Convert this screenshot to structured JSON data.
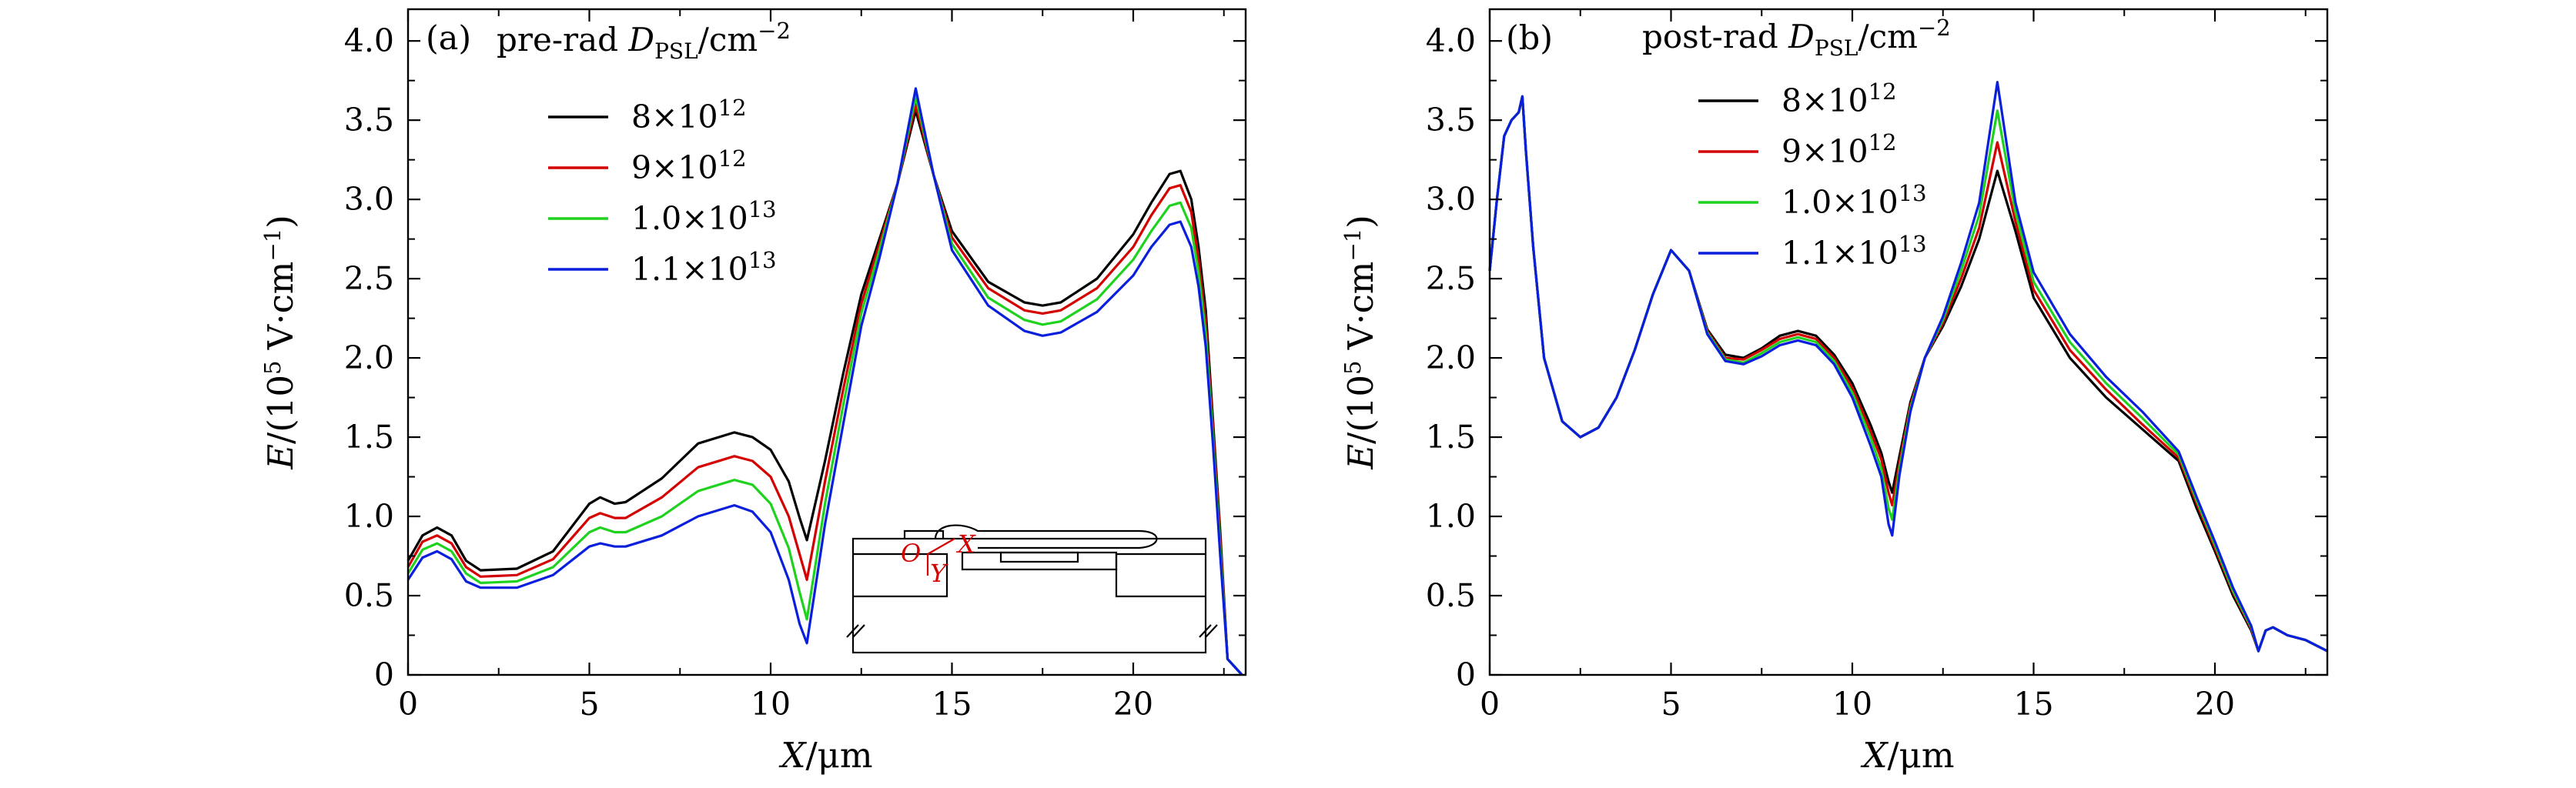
{
  "chart_data": [
    {
      "type": "line",
      "panel_label": "(a)",
      "legend_title_prefix": "pre-rad",
      "legend_title_symbol": "D",
      "legend_title_subscript": "PSL",
      "legend_title_unit": "/cm",
      "legend_title_unit_exp": "−2",
      "xlabel_symbol": "X",
      "xlabel_unit": "/μm",
      "ylabel_symbol": "E",
      "ylabel_prefix": "/(10",
      "ylabel_exp": "5",
      "ylabel_unit": " V·cm",
      "ylabel_unit_exp": "−1",
      "ylabel_close": ")",
      "xlim": [
        0,
        23.1
      ],
      "ylim": [
        0,
        4.2
      ],
      "xticks": [
        0,
        5,
        10,
        15,
        20
      ],
      "xtick_labels": [
        "0",
        "5",
        "10",
        "15",
        "20"
      ],
      "yticks": [
        0,
        0.5,
        1.0,
        1.5,
        2.0,
        2.5,
        3.0,
        3.5,
        4.0
      ],
      "ytick_labels": [
        "0",
        "0.5",
        "1.0",
        "1.5",
        "2.0",
        "2.5",
        "3.0",
        "3.5",
        "4.0"
      ],
      "grid": false,
      "legend_position": "top-left",
      "series": [
        {
          "name": "8×10",
          "name_exp": "12",
          "color": "#000000",
          "x": [
            0,
            0.4,
            0.8,
            1.2,
            1.6,
            2.0,
            3.0,
            4.0,
            5.0,
            5.3,
            5.7,
            6.0,
            7.0,
            8.0,
            9.0,
            9.5,
            10.0,
            10.5,
            10.8,
            11.0,
            11.5,
            12.0,
            12.5,
            13.0,
            13.5,
            14.0,
            14.5,
            15.0,
            16.0,
            17.0,
            17.5,
            18.0,
            19.0,
            20.0,
            20.5,
            21.0,
            21.3,
            21.6,
            21.8,
            22.0,
            22.2,
            22.4,
            22.6,
            23.0
          ],
          "y": [
            0.72,
            0.88,
            0.93,
            0.88,
            0.72,
            0.66,
            0.67,
            0.78,
            1.08,
            1.12,
            1.08,
            1.09,
            1.24,
            1.46,
            1.53,
            1.5,
            1.42,
            1.22,
            0.99,
            0.85,
            1.35,
            1.9,
            2.4,
            2.75,
            3.1,
            3.56,
            3.15,
            2.8,
            2.48,
            2.35,
            2.33,
            2.35,
            2.5,
            2.78,
            2.98,
            3.16,
            3.18,
            3.0,
            2.7,
            2.3,
            1.6,
            0.9,
            0.1,
            0.0
          ]
        },
        {
          "name": "9×10",
          "name_exp": "12",
          "color": "#d40000",
          "x": [
            0,
            0.4,
            0.8,
            1.2,
            1.6,
            2.0,
            3.0,
            4.0,
            5.0,
            5.3,
            5.7,
            6.0,
            7.0,
            8.0,
            9.0,
            9.5,
            10.0,
            10.5,
            10.8,
            11.0,
            11.5,
            12.0,
            12.5,
            13.0,
            13.5,
            14.0,
            14.5,
            15.0,
            16.0,
            17.0,
            17.5,
            18.0,
            19.0,
            20.0,
            20.5,
            21.0,
            21.3,
            21.6,
            21.8,
            22.0,
            22.2,
            22.4,
            22.6,
            23.0
          ],
          "y": [
            0.68,
            0.84,
            0.88,
            0.83,
            0.68,
            0.62,
            0.63,
            0.73,
            0.99,
            1.02,
            0.99,
            0.99,
            1.12,
            1.31,
            1.38,
            1.35,
            1.25,
            1.0,
            0.76,
            0.6,
            1.22,
            1.8,
            2.34,
            2.72,
            3.1,
            3.6,
            3.15,
            2.76,
            2.44,
            2.3,
            2.28,
            2.3,
            2.44,
            2.7,
            2.9,
            3.07,
            3.09,
            2.92,
            2.62,
            2.22,
            1.55,
            0.85,
            0.1,
            0.0
          ]
        },
        {
          "name": "1.0×10",
          "name_exp": "13",
          "color": "#1fd21f",
          "x": [
            0,
            0.4,
            0.8,
            1.2,
            1.6,
            2.0,
            3.0,
            4.0,
            5.0,
            5.3,
            5.7,
            6.0,
            7.0,
            8.0,
            9.0,
            9.5,
            10.0,
            10.5,
            10.8,
            11.0,
            11.5,
            12.0,
            12.5,
            13.0,
            13.5,
            14.0,
            14.5,
            15.0,
            16.0,
            17.0,
            17.5,
            18.0,
            19.0,
            20.0,
            20.5,
            21.0,
            21.3,
            21.6,
            21.8,
            22.0,
            22.2,
            22.4,
            22.6,
            23.0
          ],
          "y": [
            0.64,
            0.79,
            0.83,
            0.78,
            0.64,
            0.58,
            0.59,
            0.68,
            0.9,
            0.93,
            0.9,
            0.9,
            1.0,
            1.16,
            1.23,
            1.2,
            1.08,
            0.8,
            0.52,
            0.35,
            1.08,
            1.7,
            2.28,
            2.68,
            3.1,
            3.65,
            3.15,
            2.72,
            2.38,
            2.24,
            2.21,
            2.23,
            2.37,
            2.62,
            2.8,
            2.96,
            2.98,
            2.82,
            2.54,
            2.15,
            1.5,
            0.8,
            0.1,
            0.0
          ]
        },
        {
          "name": "1.1×10",
          "name_exp": "13",
          "color": "#0a1fdc",
          "x": [
            0,
            0.4,
            0.8,
            1.2,
            1.6,
            2.0,
            3.0,
            4.0,
            5.0,
            5.3,
            5.7,
            6.0,
            7.0,
            8.0,
            9.0,
            9.5,
            10.0,
            10.5,
            10.8,
            11.0,
            11.5,
            12.0,
            12.5,
            13.0,
            13.5,
            14.0,
            14.5,
            15.0,
            16.0,
            17.0,
            17.5,
            18.0,
            19.0,
            20.0,
            20.5,
            21.0,
            21.3,
            21.6,
            21.8,
            22.0,
            22.2,
            22.4,
            22.6,
            23.0
          ],
          "y": [
            0.6,
            0.74,
            0.78,
            0.73,
            0.59,
            0.55,
            0.55,
            0.63,
            0.81,
            0.83,
            0.81,
            0.81,
            0.88,
            1.0,
            1.07,
            1.03,
            0.9,
            0.6,
            0.32,
            0.2,
            0.95,
            1.58,
            2.2,
            2.63,
            3.1,
            3.7,
            3.15,
            2.68,
            2.33,
            2.17,
            2.14,
            2.16,
            2.29,
            2.52,
            2.7,
            2.84,
            2.86,
            2.7,
            2.45,
            2.07,
            1.45,
            0.75,
            0.1,
            0.0
          ]
        }
      ],
      "inset_labels": [
        "O",
        "X",
        "Y"
      ]
    },
    {
      "type": "line",
      "panel_label": "(b)",
      "legend_title_prefix": "post-rad",
      "legend_title_symbol": "D",
      "legend_title_subscript": "PSL",
      "legend_title_unit": "/cm",
      "legend_title_unit_exp": "−2",
      "xlabel_symbol": "X",
      "xlabel_unit": "/μm",
      "ylabel_symbol": "E",
      "ylabel_prefix": "/(10",
      "ylabel_exp": "5",
      "ylabel_unit": " V·cm",
      "ylabel_unit_exp": "−1",
      "ylabel_close": ")",
      "xlim": [
        0,
        23.1
      ],
      "ylim": [
        0,
        4.2
      ],
      "xticks": [
        0,
        5,
        10,
        15,
        20
      ],
      "xtick_labels": [
        "0",
        "5",
        "10",
        "15",
        "20"
      ],
      "yticks": [
        0,
        0.5,
        1.0,
        1.5,
        2.0,
        2.5,
        3.0,
        3.5,
        4.0
      ],
      "ytick_labels": [
        "0",
        "0.5",
        "1.0",
        "1.5",
        "2.0",
        "2.5",
        "3.0",
        "3.5",
        "4.0"
      ],
      "grid": false,
      "legend_position": "top-center",
      "series": [
        {
          "name": "8×10",
          "name_exp": "12",
          "color": "#000000",
          "x": [
            0,
            0.2,
            0.4,
            0.6,
            0.8,
            0.9,
            1.0,
            1.2,
            1.5,
            2.0,
            2.5,
            3.0,
            3.5,
            4.0,
            4.5,
            5.0,
            5.5,
            6.0,
            6.5,
            7.0,
            7.5,
            8.0,
            8.5,
            9.0,
            9.5,
            10.0,
            10.5,
            10.8,
            11.0,
            11.1,
            11.3,
            11.6,
            12.0,
            12.5,
            13.0,
            13.5,
            14.0,
            14.5,
            15.0,
            16.0,
            17.0,
            18.0,
            19.0,
            19.5,
            20.0,
            20.5,
            21.0,
            21.2,
            21.4,
            21.6,
            22.0,
            22.5,
            23.1
          ],
          "y": [
            2.55,
            3.0,
            3.4,
            3.5,
            3.55,
            3.65,
            3.3,
            2.7,
            2.0,
            1.6,
            1.5,
            1.56,
            1.75,
            2.05,
            2.4,
            2.68,
            2.55,
            2.18,
            2.02,
            2.0,
            2.06,
            2.14,
            2.17,
            2.14,
            2.02,
            1.84,
            1.58,
            1.4,
            1.22,
            1.15,
            1.38,
            1.72,
            2.0,
            2.2,
            2.45,
            2.75,
            3.18,
            2.8,
            2.38,
            2.0,
            1.75,
            1.55,
            1.35,
            1.05,
            0.78,
            0.5,
            0.28,
            0.15,
            0.28,
            0.3,
            0.25,
            0.22,
            0.15
          ]
        },
        {
          "name": "9×10",
          "name_exp": "12",
          "color": "#d40000",
          "x": [
            0,
            0.2,
            0.4,
            0.6,
            0.8,
            0.9,
            1.0,
            1.2,
            1.5,
            2.0,
            2.5,
            3.0,
            3.5,
            4.0,
            4.5,
            5.0,
            5.5,
            6.0,
            6.5,
            7.0,
            7.5,
            8.0,
            8.5,
            9.0,
            9.5,
            10.0,
            10.5,
            10.8,
            11.0,
            11.1,
            11.3,
            11.6,
            12.0,
            12.5,
            13.0,
            13.5,
            14.0,
            14.5,
            15.0,
            16.0,
            17.0,
            18.0,
            19.0,
            19.5,
            20.0,
            20.5,
            21.0,
            21.2,
            21.4,
            21.6,
            22.0,
            22.5,
            23.1
          ],
          "y": [
            2.55,
            3.0,
            3.4,
            3.5,
            3.55,
            3.65,
            3.3,
            2.7,
            2.0,
            1.6,
            1.5,
            1.56,
            1.75,
            2.05,
            2.4,
            2.68,
            2.55,
            2.17,
            2.0,
            1.99,
            2.05,
            2.12,
            2.15,
            2.12,
            2.0,
            1.81,
            1.54,
            1.36,
            1.15,
            1.07,
            1.34,
            1.7,
            2.0,
            2.22,
            2.5,
            2.82,
            3.36,
            2.86,
            2.43,
            2.05,
            1.8,
            1.58,
            1.37,
            1.08,
            0.8,
            0.52,
            0.29,
            0.15,
            0.28,
            0.3,
            0.25,
            0.22,
            0.15
          ]
        },
        {
          "name": "1.0×10",
          "name_exp": "13",
          "color": "#1fd21f",
          "x": [
            0,
            0.2,
            0.4,
            0.6,
            0.8,
            0.9,
            1.0,
            1.2,
            1.5,
            2.0,
            2.5,
            3.0,
            3.5,
            4.0,
            4.5,
            5.0,
            5.5,
            6.0,
            6.5,
            7.0,
            7.5,
            8.0,
            8.5,
            9.0,
            9.5,
            10.0,
            10.5,
            10.8,
            11.0,
            11.1,
            11.3,
            11.6,
            12.0,
            12.5,
            13.0,
            13.5,
            14.0,
            14.5,
            15.0,
            16.0,
            17.0,
            18.0,
            19.0,
            19.5,
            20.0,
            20.5,
            21.0,
            21.2,
            21.4,
            21.6,
            22.0,
            22.5,
            23.1
          ],
          "y": [
            2.55,
            3.0,
            3.4,
            3.5,
            3.55,
            3.65,
            3.3,
            2.7,
            2.0,
            1.6,
            1.5,
            1.56,
            1.75,
            2.05,
            2.4,
            2.68,
            2.55,
            2.16,
            1.99,
            1.97,
            2.03,
            2.1,
            2.13,
            2.1,
            1.98,
            1.78,
            1.5,
            1.3,
            1.05,
            0.98,
            1.3,
            1.68,
            2.0,
            2.24,
            2.55,
            2.9,
            3.56,
            2.92,
            2.48,
            2.1,
            1.84,
            1.62,
            1.39,
            1.1,
            0.82,
            0.53,
            0.3,
            0.15,
            0.28,
            0.3,
            0.25,
            0.22,
            0.15
          ]
        },
        {
          "name": "1.1×10",
          "name_exp": "13",
          "color": "#0a1fdc",
          "x": [
            0,
            0.2,
            0.4,
            0.6,
            0.8,
            0.9,
            1.0,
            1.2,
            1.5,
            2.0,
            2.5,
            3.0,
            3.5,
            4.0,
            4.5,
            5.0,
            5.5,
            6.0,
            6.5,
            7.0,
            7.5,
            8.0,
            8.5,
            9.0,
            9.5,
            10.0,
            10.5,
            10.8,
            11.0,
            11.1,
            11.3,
            11.6,
            12.0,
            12.5,
            13.0,
            13.5,
            14.0,
            14.5,
            15.0,
            16.0,
            17.0,
            18.0,
            19.0,
            19.5,
            20.0,
            20.5,
            21.0,
            21.2,
            21.4,
            21.6,
            22.0,
            22.5,
            23.1
          ],
          "y": [
            2.55,
            3.0,
            3.4,
            3.5,
            3.55,
            3.65,
            3.3,
            2.7,
            2.0,
            1.6,
            1.5,
            1.56,
            1.75,
            2.05,
            2.4,
            2.68,
            2.55,
            2.15,
            1.98,
            1.96,
            2.01,
            2.08,
            2.11,
            2.08,
            1.96,
            1.75,
            1.45,
            1.25,
            0.95,
            0.88,
            1.26,
            1.66,
            2.0,
            2.26,
            2.6,
            2.98,
            3.74,
            2.98,
            2.54,
            2.15,
            1.88,
            1.66,
            1.41,
            1.12,
            0.84,
            0.55,
            0.31,
            0.15,
            0.28,
            0.3,
            0.25,
            0.22,
            0.15
          ]
        }
      ]
    }
  ]
}
